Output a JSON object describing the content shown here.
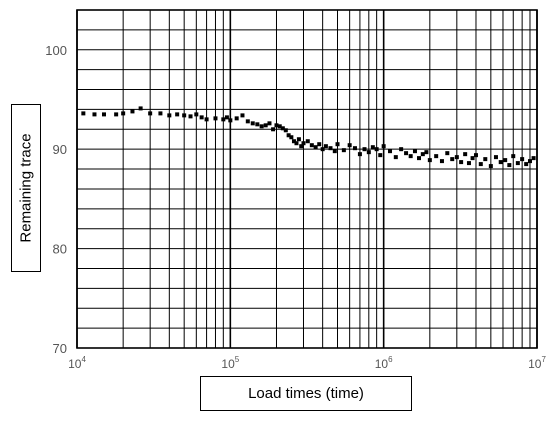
{
  "chart_data": {
    "type": "scatter",
    "title": "",
    "xlabel": "Load times (time)",
    "ylabel": "Remaining trace",
    "x_scale": "log",
    "xlim": [
      10000,
      10000000
    ],
    "ylim": [
      70,
      104
    ],
    "grid": true,
    "x_ticks": [
      {
        "value": 10000,
        "label": "10",
        "exp": "4"
      },
      {
        "value": 100000,
        "label": "10",
        "exp": "5"
      },
      {
        "value": 1000000,
        "label": "10",
        "exp": "6"
      },
      {
        "value": 10000000,
        "label": "10",
        "exp": "7"
      }
    ],
    "y_ticks": [
      {
        "value": 70,
        "label": "70"
      },
      {
        "value": 80,
        "label": "80"
      },
      {
        "value": 90,
        "label": "90"
      },
      {
        "value": 100,
        "label": "100"
      }
    ],
    "marker_color": "#000000",
    "series": [
      {
        "x": [
          11000,
          13000,
          15000,
          18000,
          20000,
          23000,
          26000,
          30000,
          35000,
          40000,
          45000,
          50000,
          55000,
          60000,
          65000,
          70000,
          80000,
          90000,
          95000,
          100000,
          110000,
          120000,
          130000,
          140000,
          150000,
          160000,
          170000,
          180000,
          190000,
          200000,
          210000,
          220000,
          230000,
          240000,
          250000,
          260000,
          270000,
          280000,
          290000,
          300000,
          320000,
          340000,
          360000,
          380000,
          400000,
          420000,
          450000,
          480000,
          500000,
          550000,
          600000,
          650000,
          700000,
          750000,
          800000,
          850000,
          900000,
          950000,
          1000000,
          1100000,
          1200000,
          1300000,
          1400000,
          1500000,
          1600000,
          1700000,
          1800000,
          1900000,
          2000000,
          2200000,
          2400000,
          2600000,
          2800000,
          3000000,
          3200000,
          3400000,
          3600000,
          3800000,
          4000000,
          4300000,
          4600000,
          5000000,
          5400000,
          5800000,
          6200000,
          6600000,
          7000000,
          7500000,
          8000000,
          8500000,
          9000000,
          9500000
        ],
        "y": [
          93.6,
          93.5,
          93.5,
          93.5,
          93.6,
          93.8,
          94.1,
          93.6,
          93.6,
          93.4,
          93.5,
          93.4,
          93.3,
          93.5,
          93.2,
          93.0,
          93.1,
          93.0,
          93.2,
          92.9,
          93.1,
          93.4,
          92.8,
          92.6,
          92.5,
          92.3,
          92.4,
          92.6,
          92.0,
          92.4,
          92.3,
          92.1,
          91.9,
          91.4,
          91.2,
          90.8,
          90.6,
          91.0,
          90.3,
          90.6,
          90.8,
          90.4,
          90.2,
          90.5,
          90.0,
          90.3,
          90.1,
          89.8,
          90.5,
          89.9,
          90.4,
          90.1,
          89.5,
          90.0,
          89.7,
          90.2,
          90.0,
          89.4,
          90.3,
          89.8,
          89.2,
          90.0,
          89.6,
          89.3,
          89.8,
          89.1,
          89.5,
          89.7,
          88.9,
          89.3,
          88.8,
          89.6,
          89.0,
          89.2,
          88.7,
          89.5,
          88.6,
          89.1,
          89.4,
          88.5,
          89.0,
          88.3,
          89.2,
          88.7,
          88.9,
          88.4,
          89.3,
          88.6,
          89.0,
          88.5,
          88.8,
          89.1
        ]
      }
    ]
  }
}
